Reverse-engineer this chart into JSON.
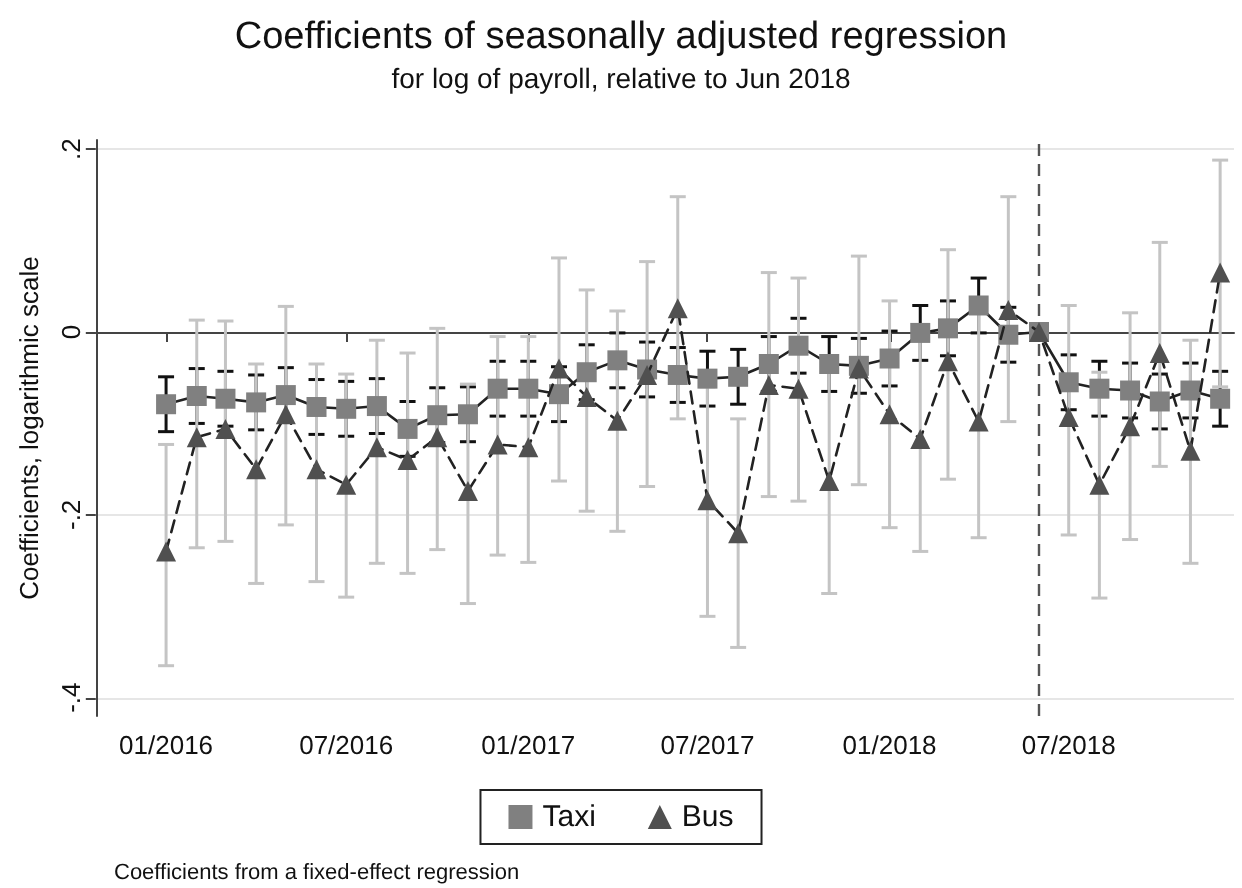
{
  "chart_data": {
    "type": "line",
    "title": "Coefficients of seasonally adjusted regression",
    "subtitle": "for log of payroll, relative to Jun 2018",
    "ylabel": "Coefficients, logarithmic scale",
    "x": [
      "2016-01",
      "2016-02",
      "2016-03",
      "2016-04",
      "2016-05",
      "2016-06",
      "2016-07",
      "2016-08",
      "2016-09",
      "2016-10",
      "2016-11",
      "2016-12",
      "2017-01",
      "2017-02",
      "2017-03",
      "2017-04",
      "2017-05",
      "2017-06",
      "2017-07",
      "2017-08",
      "2017-09",
      "2017-10",
      "2017-11",
      "2017-12",
      "2018-01",
      "2018-02",
      "2018-03",
      "2018-04",
      "2018-05",
      "2018-06",
      "2018-07",
      "2018-08",
      "2018-09",
      "2018-10",
      "2018-11",
      "2018-12"
    ],
    "series": [
      {
        "name": "Taxi",
        "color": "#808080",
        "marker": "square",
        "line_style": "solid",
        "values": [
          -0.079,
          -0.07,
          -0.073,
          -0.077,
          -0.069,
          -0.082,
          -0.084,
          -0.081,
          -0.106,
          -0.091,
          -0.09,
          -0.062,
          -0.062,
          -0.068,
          -0.044,
          -0.031,
          -0.041,
          -0.047,
          -0.051,
          -0.049,
          -0.035,
          -0.015,
          -0.035,
          -0.037,
          -0.029,
          -0.001,
          0.004,
          0.029,
          -0.003,
          0,
          -0.055,
          -0.062,
          -0.064,
          -0.076,
          -0.064,
          -0.073
        ],
        "errors": [
          0.03,
          0.03,
          0.03,
          0.03,
          0.03,
          0.03,
          0.03,
          0.03,
          0.03,
          0.03,
          0.03,
          0.03,
          0.03,
          0.03,
          0.03,
          0.03,
          0.03,
          0.03,
          0.03,
          0.03,
          0.03,
          0.03,
          0.03,
          0.03,
          0.03,
          0.03,
          0.03,
          0.03,
          0.03,
          null,
          0.03,
          0.03,
          0.03,
          0.03,
          0.03,
          0.03
        ]
      },
      {
        "name": "Bus",
        "color": "#505050",
        "marker": "triangle",
        "line_style": "dashed",
        "values": [
          -0.24,
          -0.115,
          -0.106,
          -0.15,
          -0.09,
          -0.15,
          -0.167,
          -0.126,
          -0.14,
          -0.115,
          -0.174,
          -0.123,
          -0.126,
          -0.04,
          -0.071,
          -0.097,
          -0.047,
          0.026,
          -0.184,
          -0.22,
          -0.058,
          -0.062,
          -0.163,
          -0.04,
          -0.09,
          -0.117,
          -0.032,
          -0.098,
          0.024,
          0,
          -0.093,
          -0.167,
          -0.103,
          -0.023,
          -0.13,
          0.065
        ],
        "errors": [
          [
            -0.365,
            -0.123
          ],
          [
            -0.236,
            0.013
          ],
          [
            -0.229,
            0.012
          ],
          [
            -0.275,
            -0.035
          ],
          [
            -0.211,
            0.028
          ],
          [
            -0.273,
            -0.035
          ],
          [
            -0.29,
            -0.046
          ],
          [
            -0.253,
            -0.009
          ],
          [
            -0.264,
            -0.023
          ],
          [
            -0.238,
            0.004
          ],
          [
            -0.297,
            -0.057
          ],
          [
            -0.244,
            -0.005
          ],
          [
            -0.252,
            -0.005
          ],
          [
            -0.163,
            0.081
          ],
          [
            -0.196,
            0.046
          ],
          [
            -0.218,
            0.023
          ],
          [
            -0.169,
            0.077
          ],
          [
            -0.095,
            0.148
          ],
          [
            -0.311,
            -0.06
          ],
          [
            -0.345,
            -0.095
          ],
          [
            -0.18,
            0.065
          ],
          [
            -0.185,
            0.059
          ],
          [
            -0.286,
            -0.04
          ],
          [
            -0.167,
            0.083
          ],
          [
            -0.214,
            0.034
          ],
          [
            -0.24,
            0.006
          ],
          [
            -0.161,
            0.09
          ],
          [
            -0.225,
            0.024
          ],
          [
            -0.098,
            0.148
          ],
          null,
          [
            -0.222,
            0.029
          ],
          [
            -0.291,
            -0.044
          ],
          [
            -0.227,
            0.021
          ],
          [
            -0.147,
            0.098
          ],
          [
            -0.253,
            -0.009
          ],
          [
            -0.06,
            0.188
          ]
        ]
      }
    ],
    "xlim": [
      "2015-10-22",
      "2018-12-15"
    ],
    "xticks": [
      {
        "value": "2016-01",
        "label": "01/2016"
      },
      {
        "value": "2016-07",
        "label": "07/2016"
      },
      {
        "value": "2017-01",
        "label": "01/2017"
      },
      {
        "value": "2017-07",
        "label": "07/2017"
      },
      {
        "value": "2018-01",
        "label": "01/2018"
      },
      {
        "value": "2018-07",
        "label": "07/2018"
      }
    ],
    "ylim": [
      -0.42,
      0.21
    ],
    "yticks": [
      {
        "value": -0.4,
        "label": "-.4"
      },
      {
        "value": -0.2,
        "label": "-.2"
      },
      {
        "value": 0,
        "label": "0"
      },
      {
        "value": 0.2,
        "label": ".2"
      }
    ],
    "grid": "y",
    "legend": "bottom",
    "ref_lines": [
      {
        "axis": "x",
        "value": "2018-06",
        "color": "#555555",
        "line_style": "dashed"
      }
    ],
    "annotations": [
      "Coefficients from a fixed-effect regression"
    ]
  }
}
